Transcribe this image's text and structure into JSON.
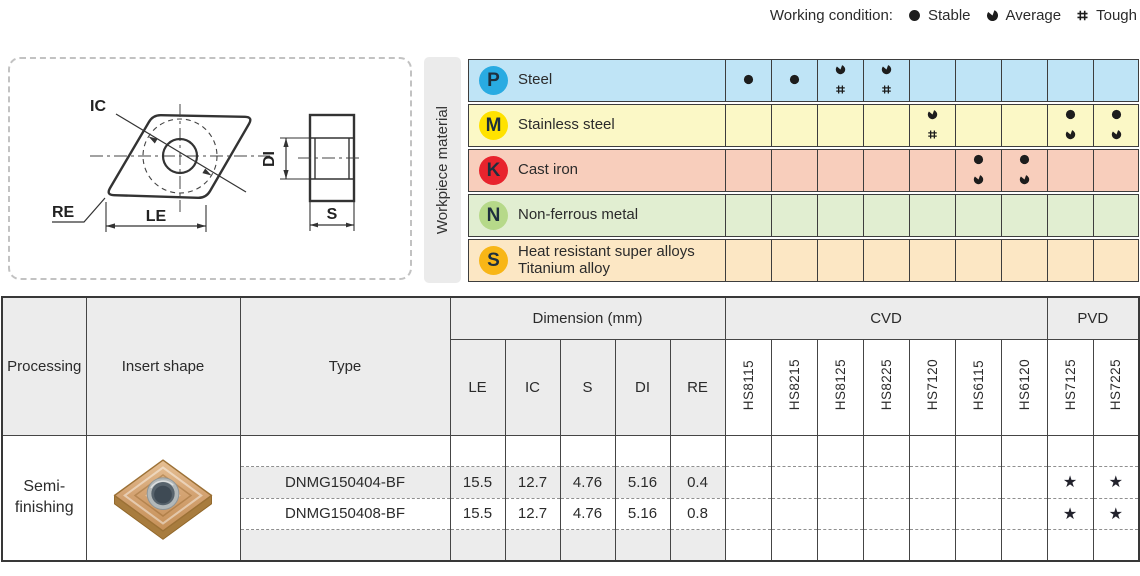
{
  "legend": {
    "title": "Working condition:",
    "items": [
      {
        "icon": "stable",
        "label": "Stable"
      },
      {
        "icon": "average",
        "label": "Average"
      },
      {
        "icon": "tough",
        "label": "Tough"
      }
    ]
  },
  "diagram": {
    "ic": "IC",
    "re": "RE",
    "le": "LE",
    "di": "DI",
    "s": "S"
  },
  "workpiece": {
    "label": "Workpiece material"
  },
  "materials": {
    "rows": [
      {
        "code": "P",
        "name_lines": [
          "Steel"
        ],
        "badge_color": "#29abe2",
        "row_color": "#bfe4f6",
        "cells": [
          [
            "stable"
          ],
          [
            "stable"
          ],
          [
            "average",
            "tough"
          ],
          [
            "average",
            "tough"
          ],
          [],
          [],
          [],
          [],
          []
        ]
      },
      {
        "code": "M",
        "name_lines": [
          "Stainless steel"
        ],
        "badge_color": "#ffe200",
        "row_color": "#fbf8c6",
        "cells": [
          [],
          [],
          [],
          [],
          [
            "average",
            "tough"
          ],
          [],
          [],
          [
            "stable",
            "average"
          ],
          [
            "stable",
            "average"
          ]
        ]
      },
      {
        "code": "K",
        "name_lines": [
          "Cast iron"
        ],
        "badge_color": "#e8232d",
        "row_color": "#f8cebc",
        "cells": [
          [],
          [],
          [],
          [],
          [],
          [
            "stable",
            "average"
          ],
          [
            "stable",
            "average"
          ],
          [],
          []
        ]
      },
      {
        "code": "N",
        "name_lines": [
          "Non-ferrous metal"
        ],
        "badge_color": "#b6d989",
        "row_color": "#e1eed1",
        "cells": [
          [],
          [],
          [],
          [],
          [],
          [],
          [],
          [],
          []
        ]
      },
      {
        "code": "S",
        "name_lines": [
          "Heat resistant super alloys",
          "Titanium alloy"
        ],
        "badge_color": "#f8b616",
        "row_color": "#fce7c4",
        "cells": [
          [],
          [],
          [],
          [],
          [],
          [],
          [],
          [],
          []
        ]
      }
    ]
  },
  "table": {
    "processing_header": "Processing",
    "insert_shape_header": "Insert shape",
    "type_header": "Type",
    "dimension_header": "Dimension (mm)",
    "dim_cols": [
      "LE",
      "IC",
      "S",
      "DI",
      "RE"
    ],
    "cvd_header": "CVD",
    "pvd_header": "PVD",
    "cvd_grades": [
      "HS8115",
      "HS8215",
      "HS8125",
      "HS8225",
      "HS7120",
      "HS6115",
      "HS6120"
    ],
    "pvd_grades": [
      "HS7125",
      "HS7225"
    ],
    "processing_lines": [
      "Semi-",
      "finishing"
    ],
    "rows": [
      {
        "type": "DNMG150404-BF",
        "dims": [
          "15.5",
          "12.7",
          "4.76",
          "5.16",
          "0.4"
        ],
        "marks": [
          "",
          "",
          "",
          "",
          "",
          "",
          "",
          "star",
          "star"
        ]
      },
      {
        "type": "DNMG150408-BF",
        "dims": [
          "15.5",
          "12.7",
          "4.76",
          "5.16",
          "0.8"
        ],
        "marks": [
          "",
          "",
          "",
          "",
          "",
          "",
          "",
          "star",
          "star"
        ]
      }
    ],
    "star_glyph": "★"
  },
  "colors": {
    "symbol": "#1d1d1d",
    "star": "#22222c"
  }
}
